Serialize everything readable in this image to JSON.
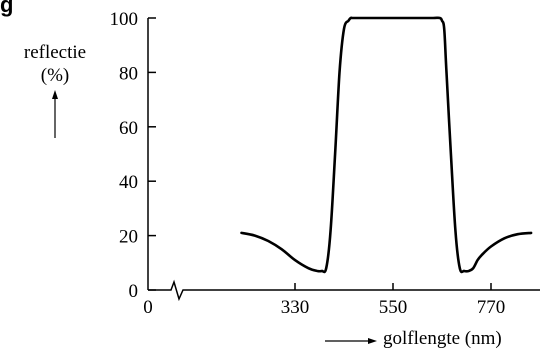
{
  "figure_label": "g",
  "chart_data": {
    "type": "line",
    "title": "",
    "ylabel_lines": [
      "reflectie",
      "(%)"
    ],
    "xlabel": "golflengte (nm)",
    "xlim": [
      0,
      880
    ],
    "ylim": [
      0,
      100
    ],
    "x_axis_break": true,
    "grid": false,
    "x_ticks": [
      0,
      330,
      550,
      770
    ],
    "y_ticks": [
      0,
      20,
      40,
      60,
      80,
      100
    ],
    "series": [
      {
        "x": [
          210,
          240,
          270,
          300,
          330,
          360,
          380,
          390,
          400,
          410,
          420,
          430,
          440,
          450,
          455,
          460,
          475,
          500,
          550,
          600,
          640,
          655,
          660,
          665,
          670,
          680,
          690,
          700,
          710,
          720,
          730,
          740,
          750,
          770,
          800,
          830,
          860
        ],
        "values": [
          21,
          20,
          18,
          15,
          11,
          8,
          7,
          7,
          8,
          22,
          50,
          80,
          96,
          99,
          100,
          100,
          100,
          100,
          100,
          100,
          100,
          100,
          99,
          96,
          80,
          50,
          22,
          8,
          7,
          7,
          8,
          11,
          13,
          16,
          19,
          20.5,
          21
        ]
      }
    ]
  }
}
